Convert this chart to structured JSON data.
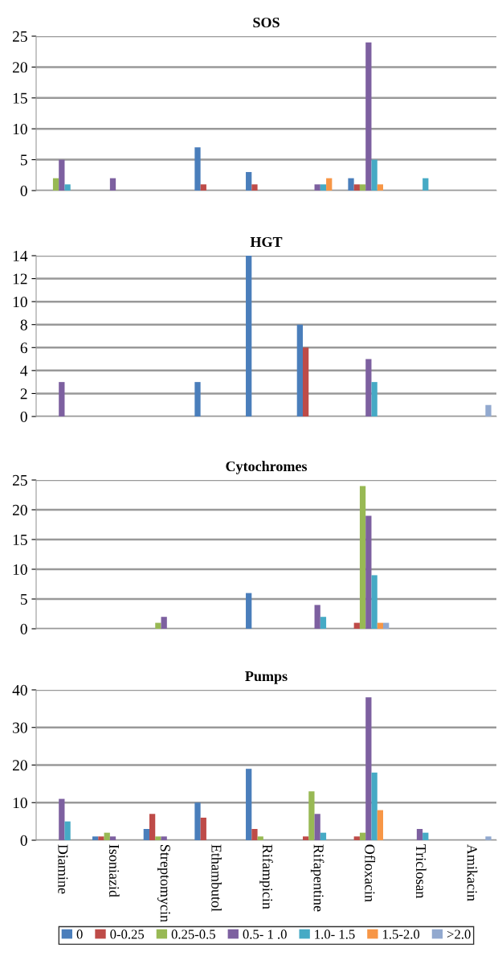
{
  "chart_data": [
    {
      "type": "bar",
      "title": "SOS",
      "categories": [
        null,
        null,
        null,
        null,
        null,
        null,
        null,
        null,
        null
      ],
      "ylim": [
        0,
        25
      ],
      "yticks": [
        0,
        5,
        10,
        15,
        20,
        25
      ],
      "grid": "y",
      "tick_labels": "y",
      "series": [
        {
          "color": "#4a7ebb",
          "values": [
            0,
            0,
            0,
            7,
            3,
            0,
            2,
            0,
            0
          ]
        },
        {
          "color": "#be4b48",
          "values": [
            0,
            0,
            0,
            1,
            1,
            0,
            1,
            0,
            0
          ]
        },
        {
          "color": "#98b954",
          "values": [
            2,
            0,
            0,
            0,
            0,
            0,
            1,
            0,
            0
          ]
        },
        {
          "color": "#7d60a0",
          "values": [
            5,
            2,
            0,
            0,
            0,
            1,
            24,
            0,
            0
          ]
        },
        {
          "color": "#46aac5",
          "values": [
            1,
            0,
            0,
            0,
            0,
            1,
            5,
            2,
            0
          ]
        },
        {
          "color": "#f79646",
          "values": [
            0,
            0,
            0,
            0,
            0,
            2,
            1,
            0,
            0
          ]
        },
        {
          "color": "#92a9cf",
          "values": [
            0,
            0,
            0,
            0,
            0,
            0,
            0,
            0,
            0
          ]
        }
      ]
    },
    {
      "type": "bar",
      "title": "HGT",
      "categories": [
        null,
        null,
        null,
        null,
        null,
        null,
        null,
        null,
        null
      ],
      "ylim": [
        0,
        14
      ],
      "yticks": [
        0,
        2,
        4,
        6,
        8,
        10,
        12,
        14
      ],
      "grid": "y",
      "tick_labels": "y",
      "series": [
        {
          "color": "#4a7ebb",
          "values": [
            0,
            0,
            0,
            3,
            14,
            8,
            0,
            0,
            0
          ]
        },
        {
          "color": "#be4b48",
          "values": [
            0,
            0,
            0,
            0,
            0,
            6,
            0,
            0,
            0
          ]
        },
        {
          "color": "#98b954",
          "values": [
            0,
            0,
            0,
            0,
            0,
            0,
            0,
            0,
            0
          ]
        },
        {
          "color": "#7d60a0",
          "values": [
            3,
            0,
            0,
            0,
            0,
            0,
            5,
            0,
            0
          ]
        },
        {
          "color": "#46aac5",
          "values": [
            0,
            0,
            0,
            0,
            0,
            0,
            3,
            0,
            0
          ]
        },
        {
          "color": "#f79646",
          "values": [
            0,
            0,
            0,
            0,
            0,
            0,
            0,
            0,
            0
          ]
        },
        {
          "color": "#92a9cf",
          "values": [
            0,
            0,
            0,
            0,
            0,
            0,
            0,
            0,
            1
          ]
        }
      ]
    },
    {
      "type": "bar",
      "title": "Cytochromes",
      "categories": [
        null,
        null,
        null,
        null,
        null,
        null,
        null,
        null,
        null
      ],
      "ylim": [
        0,
        25
      ],
      "yticks": [
        0,
        5,
        10,
        15,
        20,
        25
      ],
      "grid": "y",
      "tick_labels": "y",
      "series": [
        {
          "color": "#4a7ebb",
          "values": [
            0,
            0,
            0,
            0,
            6,
            0,
            0,
            0,
            0
          ]
        },
        {
          "color": "#be4b48",
          "values": [
            0,
            0,
            0,
            0,
            0,
            0,
            1,
            0,
            0
          ]
        },
        {
          "color": "#98b954",
          "values": [
            0,
            0,
            1,
            0,
            0,
            0,
            24,
            0,
            0
          ]
        },
        {
          "color": "#7d60a0",
          "values": [
            0,
            0,
            2,
            0,
            0,
            4,
            19,
            0,
            0
          ]
        },
        {
          "color": "#46aac5",
          "values": [
            0,
            0,
            0,
            0,
            0,
            2,
            9,
            0,
            0
          ]
        },
        {
          "color": "#f79646",
          "values": [
            0,
            0,
            0,
            0,
            0,
            0,
            1,
            0,
            0
          ]
        },
        {
          "color": "#92a9cf",
          "values": [
            0,
            0,
            0,
            0,
            0,
            0,
            1,
            0,
            0
          ]
        }
      ]
    },
    {
      "type": "bar",
      "title": "Pumps",
      "categories": [
        "Diamine",
        "Isoniazid",
        "Streptomycin",
        "Ethambutol",
        "Rifampicin",
        "Rifapentine",
        "Ofloxacin",
        "Triclosan",
        "Amikacin"
      ],
      "ylim": [
        0,
        40
      ],
      "yticks": [
        0,
        10,
        20,
        30,
        40
      ],
      "grid": "y",
      "legend": "bottom",
      "series": [
        {
          "name": "0",
          "color": "#4a7ebb",
          "values": [
            0,
            1,
            3,
            10,
            19,
            0,
            0,
            0,
            0
          ]
        },
        {
          "name": "0-0.25",
          "color": "#be4b48",
          "values": [
            0,
            1,
            7,
            6,
            3,
            1,
            1,
            0,
            0
          ]
        },
        {
          "name": "0.25-0.5",
          "color": "#98b954",
          "values": [
            0,
            2,
            1,
            0,
            1,
            13,
            2,
            0,
            0
          ]
        },
        {
          "name": "0.5- 1 .0",
          "color": "#7d60a0",
          "values": [
            11,
            1,
            1,
            0,
            0,
            7,
            38,
            3,
            0
          ]
        },
        {
          "name": "1.0- 1.5",
          "color": "#46aac5",
          "values": [
            5,
            0,
            0,
            0,
            0,
            2,
            18,
            2,
            0
          ]
        },
        {
          "name": "1.5-2.0",
          "color": "#f79646",
          "values": [
            0,
            0,
            0,
            0,
            0,
            0,
            8,
            0,
            0
          ]
        },
        {
          "name": ">2.0",
          "color": "#92a9cf",
          "values": [
            0,
            0,
            0,
            0,
            0,
            0,
            0,
            0,
            1
          ]
        }
      ]
    }
  ]
}
